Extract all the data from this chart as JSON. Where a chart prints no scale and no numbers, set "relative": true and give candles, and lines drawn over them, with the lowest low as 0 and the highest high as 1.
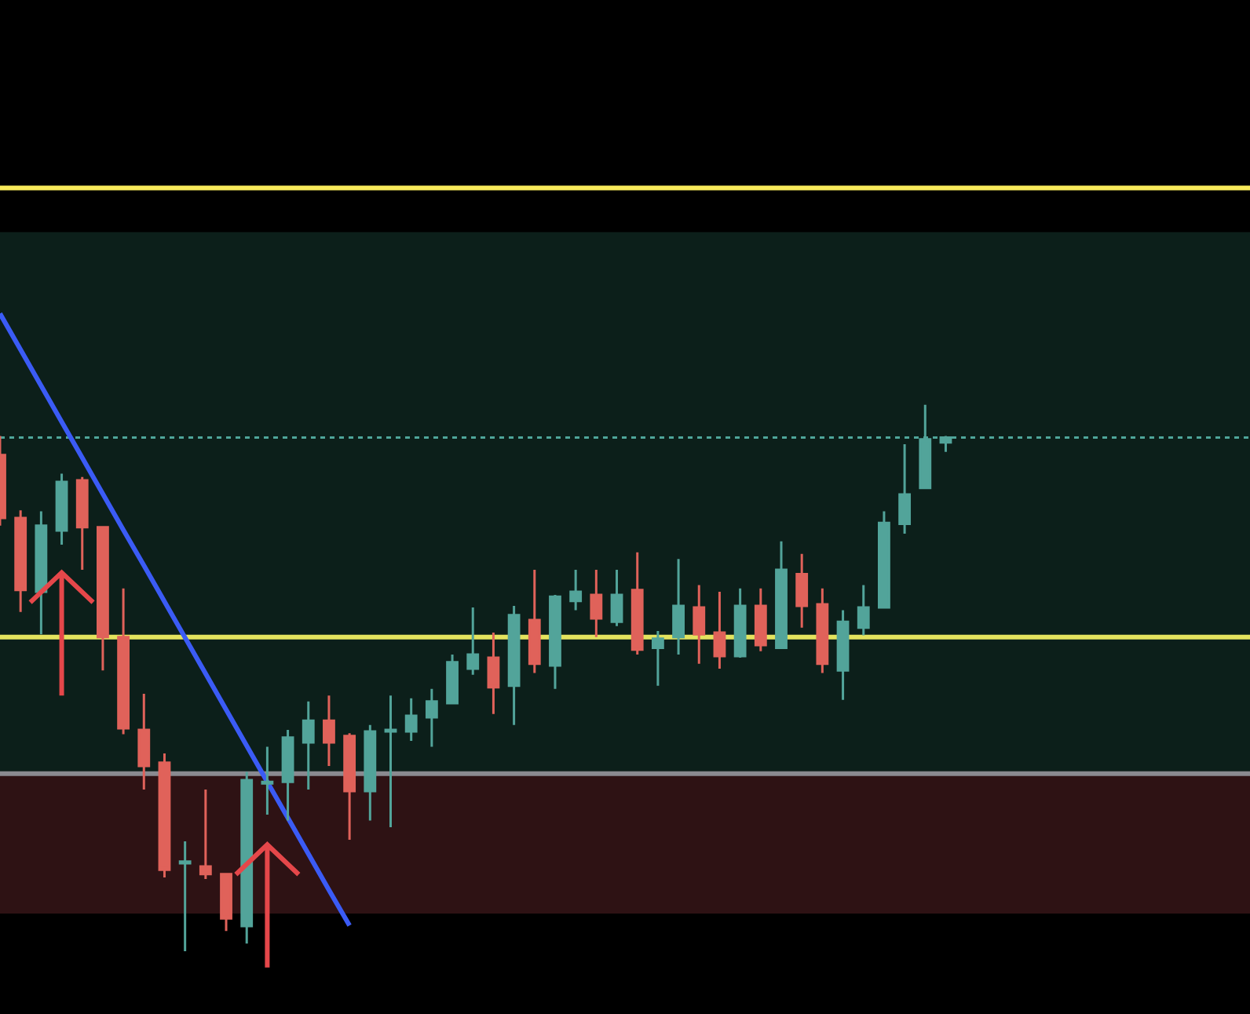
{
  "chart_data": {
    "type": "candlestick",
    "relative": true,
    "categories": [
      null,
      null,
      null,
      null,
      null,
      null,
      null,
      null,
      null,
      null,
      null,
      null,
      null,
      null,
      null,
      null,
      null,
      null,
      null,
      null,
      null,
      null,
      null,
      null,
      null,
      null,
      null,
      null,
      null,
      null,
      null,
      null,
      null,
      null,
      null,
      null,
      null,
      null,
      null,
      null,
      null,
      null,
      null,
      null,
      null,
      null,
      null
    ],
    "ohlc": [
      [
        0.908,
        0.943,
        0.779,
        0.793
      ],
      [
        0.793,
        0.807,
        0.621,
        0.661
      ],
      [
        0.658,
        0.805,
        0.58,
        0.779
      ],
      [
        0.77,
        0.874,
        0.744,
        0.859
      ],
      [
        0.862,
        0.868,
        0.698,
        0.776
      ],
      [
        0.776,
        0.776,
        0.514,
        0.575
      ],
      [
        0.575,
        0.664,
        0.397,
        0.408
      ],
      [
        0.405,
        0.471,
        0.296,
        0.339
      ],
      [
        0.345,
        0.362,
        0.135,
        0.149
      ],
      [
        0.161,
        0.201,
        0,
        0.164
      ],
      [
        0.155,
        0.296,
        0.132,
        0.141
      ],
      [
        0.141,
        0.141,
        0.037,
        0.06
      ],
      [
        0.046,
        0.328,
        0.014,
        0.313
      ],
      [
        0.307,
        0.374,
        0.25,
        0.31
      ],
      [
        0.31,
        0.405,
        0.239,
        0.391
      ],
      [
        0.382,
        0.457,
        0.296,
        0.422
      ],
      [
        0.422,
        0.468,
        0.339,
        0.382
      ],
      [
        0.394,
        0.399,
        0.204,
        0.293
      ],
      [
        0.293,
        0.414,
        0.239,
        0.402
      ],
      [
        0.402,
        0.468,
        0.227,
        0.405
      ],
      [
        0.402,
        0.463,
        0.385,
        0.431
      ],
      [
        0.428,
        0.48,
        0.374,
        0.457
      ],
      [
        0.454,
        0.543,
        0.454,
        0.529
      ],
      [
        0.517,
        0.629,
        0.506,
        0.543
      ],
      [
        0.537,
        0.583,
        0.434,
        0.483
      ],
      [
        0.486,
        0.632,
        0.414,
        0.615
      ],
      [
        0.606,
        0.698,
        0.509,
        0.526
      ],
      [
        0.523,
        0.652,
        0.48,
        0.649
      ],
      [
        0.641,
        0.698,
        0.624,
        0.658
      ],
      [
        0.652,
        0.698,
        0.575,
        0.609
      ],
      [
        0.603,
        0.698,
        0.595,
        0.652
      ],
      [
        0.661,
        0.73,
        0.543,
        0.552
      ],
      [
        0.555,
        0.586,
        0.486,
        0.572
      ],
      [
        0.575,
        0.718,
        0.543,
        0.632
      ],
      [
        0.629,
        0.67,
        0.526,
        0.58
      ],
      [
        0.583,
        0.658,
        0.517,
        0.54
      ],
      [
        0.54,
        0.664,
        0.537,
        0.632
      ],
      [
        0.632,
        0.664,
        0.549,
        0.56
      ],
      [
        0.555,
        0.75,
        0.555,
        0.698
      ],
      [
        0.69,
        0.727,
        0.592,
        0.632
      ],
      [
        0.635,
        0.664,
        0.509,
        0.526
      ],
      [
        0.514,
        0.624,
        0.46,
        0.603
      ],
      [
        0.592,
        0.67,
        0.578,
        0.629
      ],
      [
        0.629,
        0.805,
        0.629,
        0.784
      ],
      [
        0.782,
        0.928,
        0.764,
        0.836
      ],
      [
        0.848,
        1,
        0.848,
        0.937
      ],
      [
        0.931,
        0.943,
        0.914,
        0.94
      ]
    ],
    "colors": [
      "#e0625a",
      "#e0625a",
      "#52a49a",
      "#52a49a",
      "#e0625a",
      "#e0625a",
      "#e0625a",
      "#e0625a",
      "#e0625a",
      "#52a49a",
      "#e0625a",
      "#e0625a",
      "#52a49a",
      "#52a49a",
      "#52a49a",
      "#52a49a",
      "#e0625a",
      "#e0625a",
      "#52a49a",
      "#52a49a",
      "#52a49a",
      "#52a49a",
      "#52a49a",
      "#52a49a",
      "#e0625a",
      "#52a49a",
      "#e0625a",
      "#52a49a",
      "#52a49a",
      "#e0625a",
      "#52a49a",
      "#e0625a",
      "#52a49a",
      "#52a49a",
      "#e0625a",
      "#e0625a",
      "#52a49a",
      "#e0625a",
      "#52a49a",
      "#e0625a",
      "#e0625a",
      "#52a49a",
      "#52a49a",
      "#52a49a",
      "#52a49a",
      "#52a49a",
      "#52a49a"
    ],
    "series": [
      {
        "type": "line",
        "values": [
          1.167,
          1.101,
          1.035,
          0.969,
          0.903,
          0.837,
          0.771,
          0.706,
          0.64,
          0.574,
          0.508,
          0.442,
          0.376,
          0.31,
          0.244,
          0.178,
          0.112,
          0.047,
          null,
          null,
          null,
          null,
          null,
          null,
          null,
          null,
          null,
          null,
          null,
          null,
          null,
          null,
          null,
          null,
          null,
          null,
          null,
          null,
          null,
          null,
          null,
          null,
          null,
          null,
          null,
          null,
          null
        ],
        "color": "#3b5bf5"
      }
    ],
    "bands": [
      {
        "axis": "y",
        "from": 0.325,
        "to": 1.316,
        "color": "#0c1f1a"
      },
      {
        "axis": "y",
        "from": 0.069,
        "to": 0.325,
        "color": "#2e1214"
      }
    ],
    "ref_lines": [
      {
        "axis": "y",
        "value": 1.397,
        "color": "#f7ea5a"
      },
      {
        "axis": "y",
        "value": 0.575,
        "color": "#e4e35e"
      },
      {
        "axis": "y",
        "value": 0.94,
        "color": "#4fa69a",
        "line_style": "dotted"
      },
      {
        "axis": "y",
        "value": 0.325,
        "color": "#8a8a90"
      }
    ]
  }
}
